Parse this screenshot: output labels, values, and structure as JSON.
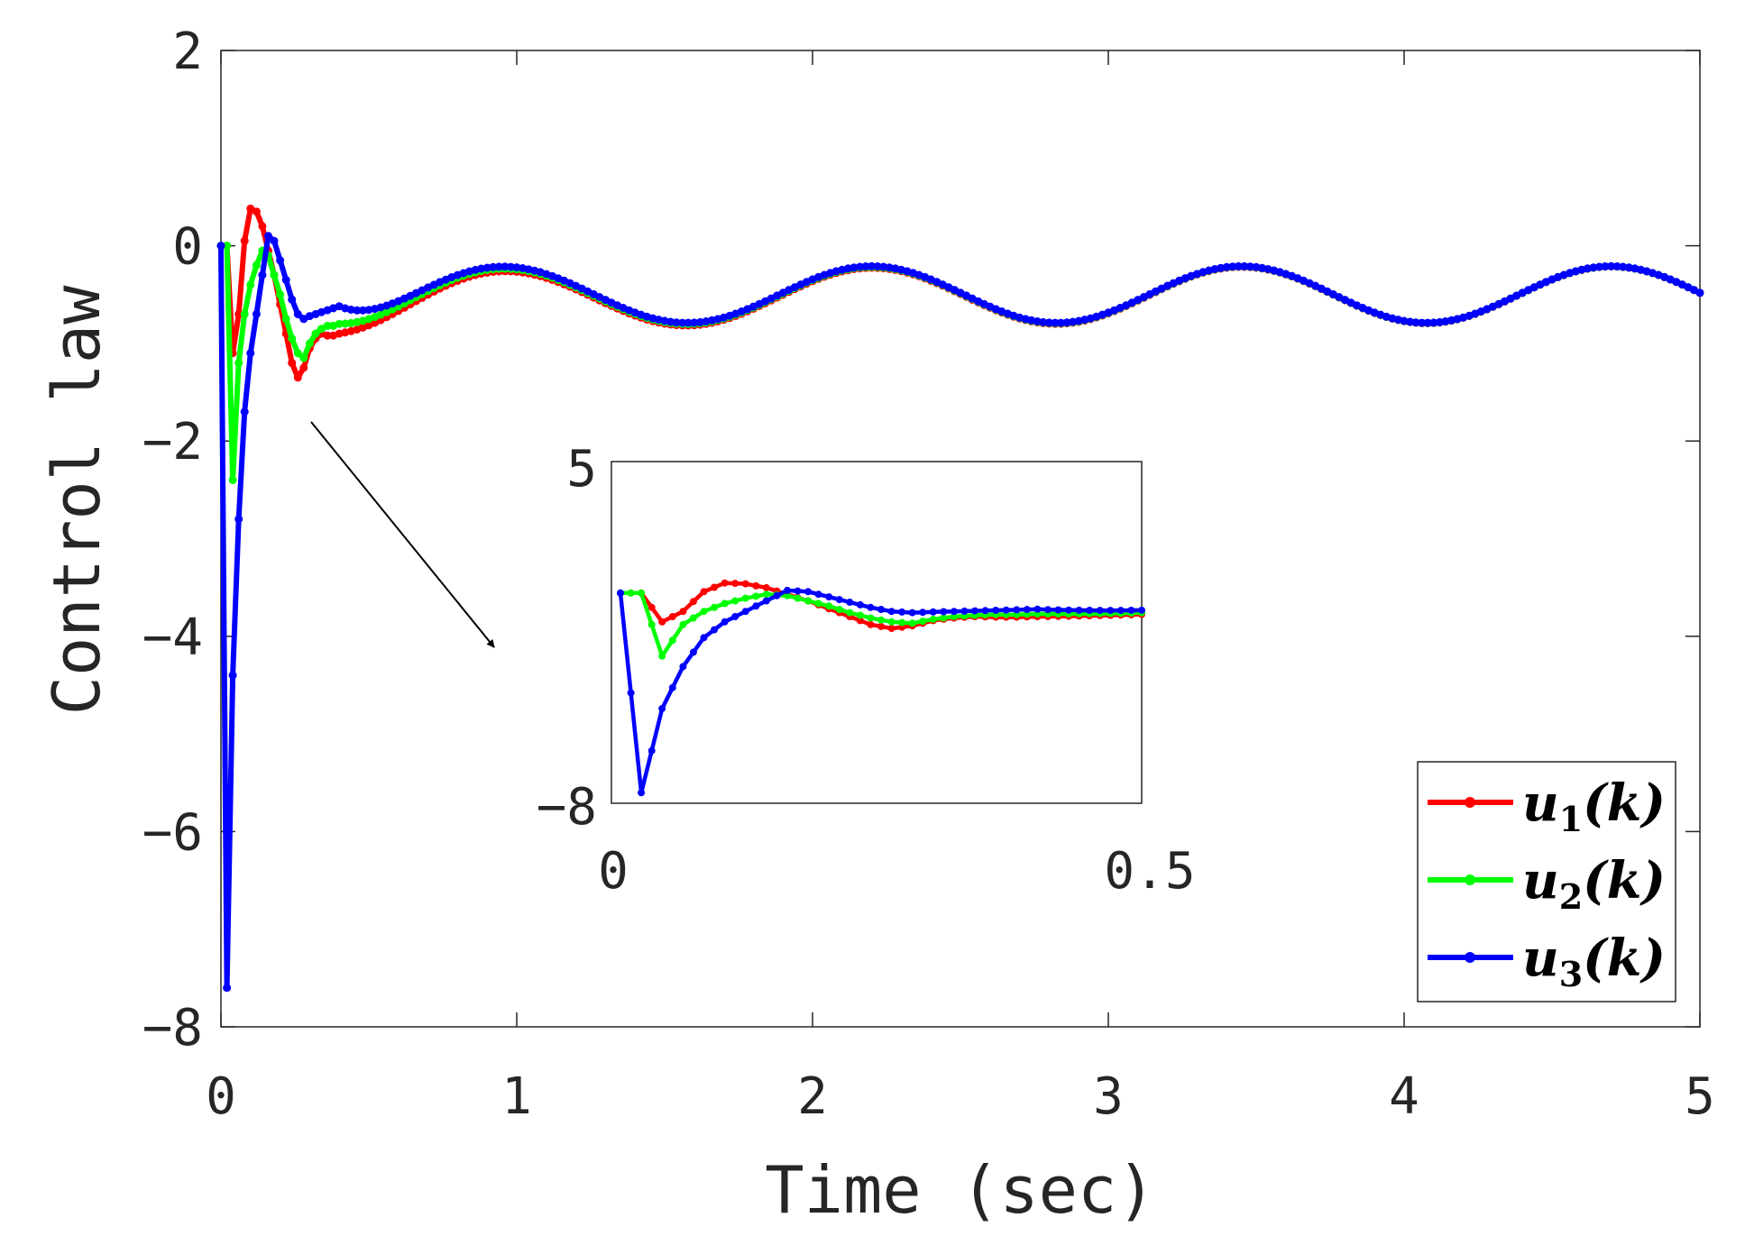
{
  "chart_data": {
    "type": "line",
    "xlabel": "Time (sec)",
    "ylabel": "Control law",
    "xlim": [
      0,
      5
    ],
    "ylim": [
      -8,
      2
    ],
    "xticks": [
      0,
      1,
      2,
      3,
      4,
      5
    ],
    "yticks": [
      2,
      0,
      -2,
      -4,
      -6,
      -8
    ],
    "xtick_labels": [
      "0",
      "1",
      "2",
      "3",
      "4",
      "5"
    ],
    "ytick_labels": [
      "2",
      "0",
      "−2",
      "−4",
      "−6",
      "−8"
    ],
    "grid": false,
    "legend_position": "bottom-right",
    "sample_step": 0.02,
    "series": [
      {
        "name": "u1(k)",
        "label_base": "u",
        "label_sub": "1",
        "label_arg": "(k)",
        "color": "#ff0000",
        "transient": [
          [
            0.0,
            0.0
          ],
          [
            0.02,
            0.0
          ],
          [
            0.04,
            -1.1
          ],
          [
            0.06,
            -0.7
          ],
          [
            0.08,
            0.05
          ],
          [
            0.1,
            0.38
          ],
          [
            0.12,
            0.35
          ],
          [
            0.14,
            0.2
          ],
          [
            0.16,
            -0.05
          ],
          [
            0.18,
            -0.3
          ],
          [
            0.2,
            -0.6
          ],
          [
            0.22,
            -0.9
          ],
          [
            0.24,
            -1.2
          ],
          [
            0.26,
            -1.35
          ],
          [
            0.28,
            -1.25
          ],
          [
            0.3,
            -1.05
          ],
          [
            0.32,
            -0.95
          ],
          [
            0.34,
            -0.9
          ],
          [
            0.36,
            -0.92
          ],
          [
            0.38,
            -0.92
          ],
          [
            0.4,
            -0.9
          ]
        ],
        "offset": 0.07,
        "offset_decay": 1.2
      },
      {
        "name": "u2(k)",
        "label_base": "u",
        "label_sub": "2",
        "label_arg": "(k)",
        "color": "#00ff00",
        "transient": [
          [
            0.0,
            0.0
          ],
          [
            0.02,
            0.0
          ],
          [
            0.04,
            -2.4
          ],
          [
            0.06,
            -1.2
          ],
          [
            0.08,
            -0.7
          ],
          [
            0.1,
            -0.4
          ],
          [
            0.12,
            -0.2
          ],
          [
            0.14,
            -0.05
          ],
          [
            0.16,
            -0.1
          ],
          [
            0.18,
            -0.3
          ],
          [
            0.2,
            -0.5
          ],
          [
            0.22,
            -0.75
          ],
          [
            0.24,
            -0.95
          ],
          [
            0.26,
            -1.1
          ],
          [
            0.28,
            -1.15
          ],
          [
            0.3,
            -1.0
          ],
          [
            0.32,
            -0.9
          ],
          [
            0.34,
            -0.85
          ],
          [
            0.36,
            -0.82
          ],
          [
            0.38,
            -0.82
          ],
          [
            0.4,
            -0.8
          ]
        ],
        "offset": 0.03,
        "offset_decay": 1.2
      },
      {
        "name": "u3(k)",
        "label_base": "u",
        "label_sub": "3",
        "label_arg": "(k)",
        "color": "#0000ff",
        "transient": [
          [
            0.0,
            0.0
          ],
          [
            0.02,
            -7.6
          ],
          [
            0.04,
            -4.4
          ],
          [
            0.06,
            -2.8
          ],
          [
            0.08,
            -1.7
          ],
          [
            0.1,
            -1.1
          ],
          [
            0.12,
            -0.7
          ],
          [
            0.14,
            -0.3
          ],
          [
            0.16,
            0.1
          ],
          [
            0.18,
            0.05
          ],
          [
            0.2,
            -0.15
          ],
          [
            0.22,
            -0.35
          ],
          [
            0.24,
            -0.55
          ],
          [
            0.26,
            -0.7
          ],
          [
            0.28,
            -0.75
          ],
          [
            0.3,
            -0.72
          ],
          [
            0.32,
            -0.7
          ],
          [
            0.34,
            -0.68
          ],
          [
            0.36,
            -0.66
          ],
          [
            0.38,
            -0.64
          ],
          [
            0.4,
            -0.62
          ]
        ],
        "offset": 0.0,
        "offset_decay": 1.2
      }
    ],
    "steady_state": {
      "mean": -0.5,
      "amplitude": 0.29,
      "period": 1.25,
      "peak_time": 0.95
    },
    "inset": {
      "xlim": [
        0,
        0.5
      ],
      "ylim": [
        -8,
        5
      ],
      "xtick_labels": [
        "0",
        "0.5"
      ],
      "ytick_labels": [
        "5",
        "−8"
      ]
    }
  }
}
